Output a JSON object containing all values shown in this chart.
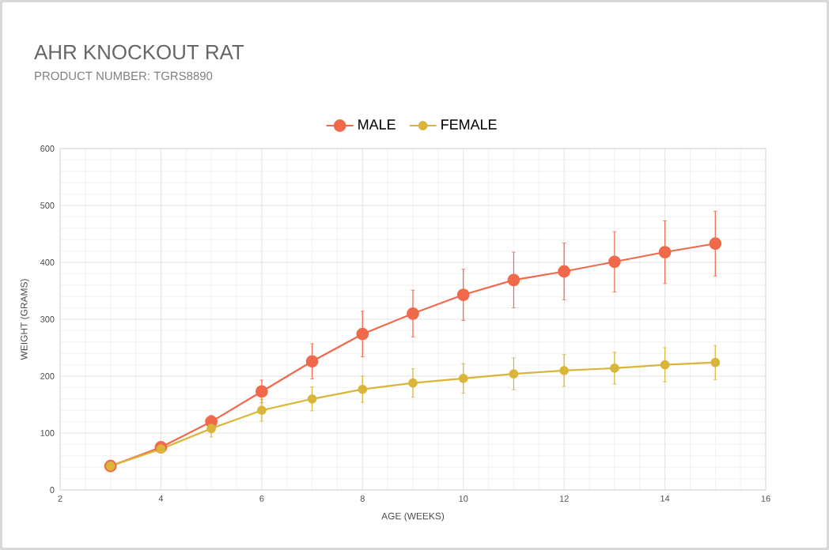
{
  "chart_data": {
    "type": "line",
    "title": "AHR KNOCKOUT RAT",
    "subtitle": "PRODUCT NUMBER: TGRS8890",
    "xlabel": "AGE (WEEKS)",
    "ylabel": "WEIGHT (GRAMS)",
    "x": [
      3,
      4,
      5,
      6,
      7,
      8,
      9,
      10,
      11,
      12,
      13,
      14,
      15
    ],
    "series": [
      {
        "name": "MALE",
        "color": "#f0694a",
        "values": [
          42,
          75,
          120,
          173,
          226,
          274,
          310,
          343,
          369,
          384,
          401,
          418,
          433
        ],
        "errors": [
          null,
          5,
          11,
          20,
          31,
          40,
          41,
          45,
          49,
          50,
          53,
          55,
          57
        ]
      },
      {
        "name": "FEMALE",
        "color": "#d9b53a",
        "values": [
          42,
          72,
          108,
          140,
          160,
          177,
          188,
          196,
          204,
          210,
          214,
          220,
          224
        ],
        "errors": [
          null,
          5,
          15,
          19,
          21,
          23,
          25,
          26,
          28,
          28,
          28,
          30,
          30
        ]
      }
    ],
    "xlim": [
      2,
      16
    ],
    "ylim": [
      0,
      600
    ],
    "xticks": [
      2,
      4,
      6,
      8,
      10,
      12,
      14,
      16
    ],
    "yticks": [
      0,
      100,
      200,
      300,
      400,
      500,
      600
    ],
    "grid": true,
    "legend": "top",
    "marker": "circle",
    "line_style": "solid"
  }
}
